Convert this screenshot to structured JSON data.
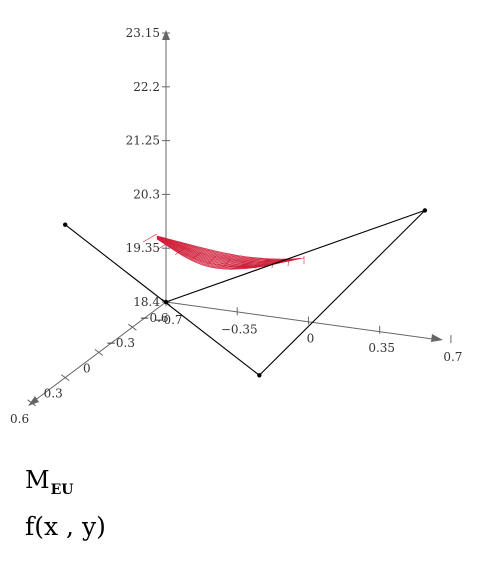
{
  "chart_data": {
    "type": "surface3d",
    "z_axis": {
      "ticks": [
        18.4,
        19.35,
        20.3,
        21.25,
        22.2,
        23.15
      ],
      "tick_labels": [
        "18.4",
        "19.35",
        "20.3",
        "21.25",
        "22.2",
        "23.15"
      ]
    },
    "x_axis": {
      "ticks": [
        -0.7,
        -0.35,
        0,
        0.35,
        0.7
      ],
      "tick_labels": [
        "−0.7",
        "−0.35",
        "0",
        "0.35",
        "0.7"
      ]
    },
    "y_axis": {
      "ticks": [
        -0.6,
        -0.3,
        0,
        0.3,
        0.6
      ],
      "tick_labels": [
        "−0.6",
        "−0.3",
        "0",
        "0.3",
        "0.6"
      ]
    },
    "series": [
      {
        "name": "M_EU",
        "kind": "polyline",
        "color": "#000000",
        "points": [
          {
            "x": -0.7,
            "y": 0.3,
            "z": 21.1
          },
          {
            "x": 0.1,
            "y": 0.02,
            "z": 18.4
          },
          {
            "x": 0.6,
            "y": -0.55,
            "z": 20.7
          },
          {
            "x": -0.7,
            "y": -0.6,
            "z": 18.4
          }
        ]
      },
      {
        "name": "f(x,y)",
        "kind": "surface",
        "color": "#d0203a"
      }
    ]
  },
  "legend": {
    "item1": {
      "base": "M",
      "sub": "EU"
    },
    "item2": "f(x , y)"
  }
}
